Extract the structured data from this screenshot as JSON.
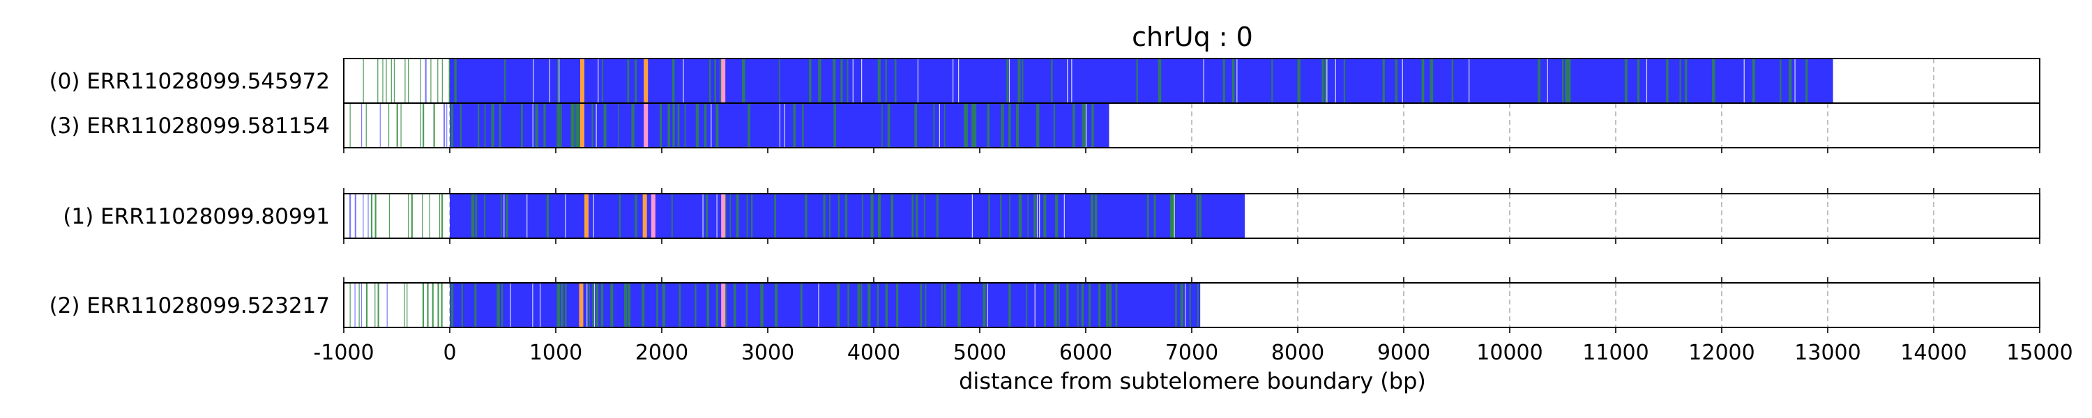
{
  "chart_data": {
    "type": "telomere_read_tracks",
    "title": "chrUq : 0",
    "xlabel": "distance from subtelomere boundary (bp)",
    "xlim": [
      -1000,
      15000
    ],
    "x_ticks": [
      -1000,
      0,
      1000,
      2000,
      3000,
      4000,
      5000,
      6000,
      7000,
      8000,
      9000,
      10000,
      11000,
      12000,
      13000,
      14000,
      15000
    ],
    "grid": "vertical dashed at each 1000 bp",
    "groups": [
      {
        "reads": [
          {
            "label": "(0) ERR11028099.545972",
            "start": -1000,
            "end": 13050,
            "telomere_start": 0,
            "pink": [
              2580
            ],
            "orange": [
              1250,
              1850
            ],
            "green_density": "low"
          },
          {
            "label": "(3) ERR11028099.581154",
            "start": -1000,
            "end": 6220,
            "telomere_start": 0,
            "pink": [
              1850
            ],
            "orange": [
              1250
            ],
            "green_density": "medium"
          }
        ]
      },
      {
        "reads": [
          {
            "label": "(1) ERR11028099.80991",
            "start": -1000,
            "end": 7500,
            "telomere_start": 0,
            "pink": [
              1920,
              2580
            ],
            "orange": [
              1290,
              1840
            ],
            "green_density": "medium"
          }
        ]
      },
      {
        "reads": [
          {
            "label": "(2) ERR11028099.523217",
            "start": -1000,
            "end": 7080,
            "telomere_start": 0,
            "pink": [
              2580
            ],
            "orange": [
              1240
            ],
            "green_density": "high"
          }
        ]
      }
    ],
    "colors": {
      "telomere": "#3333ff",
      "variant": "#2e8b3e",
      "gap": "#ffffff",
      "pink": "#ff99cc",
      "orange": "#ffa040",
      "subtelomere_line_green": "#2e8b3e",
      "subtelomere_line_blue": "#6666ff",
      "grid": "#b0b0b0",
      "frame": "#000000"
    }
  }
}
